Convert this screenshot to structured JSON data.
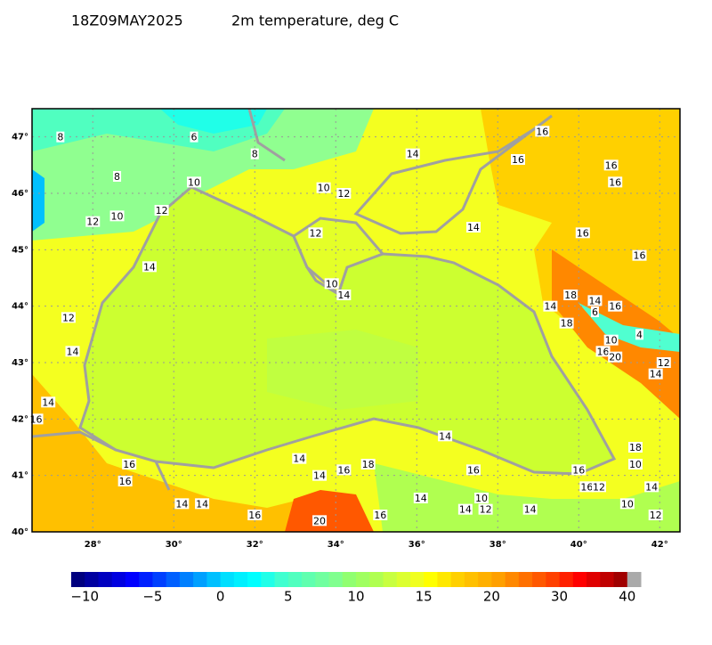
{
  "header": {
    "time": "18Z09MAY2025",
    "title": "2m temperature, deg C"
  },
  "map": {
    "lon_range": [
      26.5,
      42.5
    ],
    "lat_range": [
      40,
      47.5
    ],
    "grid": true,
    "lon_ticks": [
      {
        "value": 28,
        "label": "28°"
      },
      {
        "value": 30,
        "label": "30°"
      },
      {
        "value": 32,
        "label": "32°"
      },
      {
        "value": 34,
        "label": "34°"
      },
      {
        "value": 36,
        "label": "36°"
      },
      {
        "value": 38,
        "label": "38°"
      },
      {
        "value": 40,
        "label": "40°"
      },
      {
        "value": 42,
        "label": "42°"
      }
    ],
    "lat_ticks": [
      {
        "value": 40,
        "label": "40°"
      },
      {
        "value": 41,
        "label": "41°"
      },
      {
        "value": 42,
        "label": "42°"
      },
      {
        "value": 43,
        "label": "43°"
      },
      {
        "value": 44,
        "label": "44°"
      },
      {
        "value": 45,
        "label": "45°"
      },
      {
        "value": 46,
        "label": "46°"
      },
      {
        "value": 47,
        "label": "47°"
      }
    ],
    "contour_labels": [
      {
        "lon": 27.2,
        "lat": 47.0,
        "value": 8
      },
      {
        "lon": 30.5,
        "lat": 47.0,
        "value": 6
      },
      {
        "lon": 32.0,
        "lat": 46.7,
        "value": 8
      },
      {
        "lon": 28.6,
        "lat": 46.3,
        "value": 8
      },
      {
        "lon": 30.5,
        "lat": 46.2,
        "value": 10
      },
      {
        "lon": 33.7,
        "lat": 46.1,
        "value": 10
      },
      {
        "lon": 34.2,
        "lat": 46.0,
        "value": 12
      },
      {
        "lon": 35.9,
        "lat": 46.7,
        "value": 14
      },
      {
        "lon": 39.1,
        "lat": 47.1,
        "value": 16
      },
      {
        "lon": 38.5,
        "lat": 46.6,
        "value": 16
      },
      {
        "lon": 40.8,
        "lat": 46.5,
        "value": 16
      },
      {
        "lon": 40.9,
        "lat": 46.2,
        "value": 16
      },
      {
        "lon": 28.0,
        "lat": 45.5,
        "value": 12
      },
      {
        "lon": 28.6,
        "lat": 45.6,
        "value": 10
      },
      {
        "lon": 29.7,
        "lat": 45.7,
        "value": 12
      },
      {
        "lon": 37.4,
        "lat": 45.4,
        "value": 14
      },
      {
        "lon": 40.1,
        "lat": 45.3,
        "value": 16
      },
      {
        "lon": 41.5,
        "lat": 44.9,
        "value": 16
      },
      {
        "lon": 33.5,
        "lat": 45.3,
        "value": 12
      },
      {
        "lon": 29.4,
        "lat": 44.7,
        "value": 14
      },
      {
        "lon": 33.9,
        "lat": 44.4,
        "value": 10
      },
      {
        "lon": 34.2,
        "lat": 44.2,
        "value": 14
      },
      {
        "lon": 39.8,
        "lat": 44.2,
        "value": 18
      },
      {
        "lon": 40.4,
        "lat": 44.1,
        "value": 14
      },
      {
        "lon": 40.9,
        "lat": 44.0,
        "value": 16
      },
      {
        "lon": 40.4,
        "lat": 43.9,
        "value": 6
      },
      {
        "lon": 39.3,
        "lat": 44.0,
        "value": 14
      },
      {
        "lon": 27.4,
        "lat": 43.8,
        "value": 12
      },
      {
        "lon": 39.7,
        "lat": 43.7,
        "value": 18
      },
      {
        "lon": 40.8,
        "lat": 43.4,
        "value": 10
      },
      {
        "lon": 41.5,
        "lat": 43.5,
        "value": 4
      },
      {
        "lon": 27.5,
        "lat": 43.2,
        "value": 14
      },
      {
        "lon": 40.6,
        "lat": 43.2,
        "value": 16
      },
      {
        "lon": 40.9,
        "lat": 43.1,
        "value": 20
      },
      {
        "lon": 42.1,
        "lat": 43.0,
        "value": 12
      },
      {
        "lon": 41.9,
        "lat": 42.8,
        "value": 14
      },
      {
        "lon": 26.9,
        "lat": 42.3,
        "value": 14
      },
      {
        "lon": 26.6,
        "lat": 42.0,
        "value": 16
      },
      {
        "lon": 36.7,
        "lat": 41.7,
        "value": 14
      },
      {
        "lon": 28.9,
        "lat": 41.2,
        "value": 16
      },
      {
        "lon": 28.8,
        "lat": 40.9,
        "value": 16
      },
      {
        "lon": 33.1,
        "lat": 41.3,
        "value": 14
      },
      {
        "lon": 33.6,
        "lat": 41.0,
        "value": 14
      },
      {
        "lon": 34.2,
        "lat": 41.1,
        "value": 16
      },
      {
        "lon": 34.8,
        "lat": 41.2,
        "value": 18
      },
      {
        "lon": 37.4,
        "lat": 41.1,
        "value": 16
      },
      {
        "lon": 41.4,
        "lat": 41.5,
        "value": 18
      },
      {
        "lon": 41.4,
        "lat": 41.2,
        "value": 10
      },
      {
        "lon": 40.0,
        "lat": 41.1,
        "value": 16
      },
      {
        "lon": 40.2,
        "lat": 40.8,
        "value": 16
      },
      {
        "lon": 40.5,
        "lat": 40.8,
        "value": 12
      },
      {
        "lon": 41.8,
        "lat": 40.8,
        "value": 14
      },
      {
        "lon": 41.2,
        "lat": 40.5,
        "value": 10
      },
      {
        "lon": 41.9,
        "lat": 40.3,
        "value": 12
      },
      {
        "lon": 30.2,
        "lat": 40.5,
        "value": 14
      },
      {
        "lon": 30.7,
        "lat": 40.5,
        "value": 14
      },
      {
        "lon": 32.0,
        "lat": 40.3,
        "value": 16
      },
      {
        "lon": 33.6,
        "lat": 40.2,
        "value": 20
      },
      {
        "lon": 35.1,
        "lat": 40.3,
        "value": 16
      },
      {
        "lon": 36.1,
        "lat": 40.6,
        "value": 14
      },
      {
        "lon": 37.6,
        "lat": 40.6,
        "value": 10
      },
      {
        "lon": 37.2,
        "lat": 40.4,
        "value": 14
      },
      {
        "lon": 37.7,
        "lat": 40.4,
        "value": 12
      },
      {
        "lon": 38.8,
        "lat": 40.4,
        "value": 14
      }
    ]
  },
  "colorbar": {
    "ticks": [
      {
        "value": -10,
        "label": "−10"
      },
      {
        "value": -5,
        "label": "−5"
      },
      0,
      5,
      10,
      15,
      20,
      30,
      40
    ],
    "colors": [
      "#00007f",
      "#0000a0",
      "#0000c0",
      "#0000e0",
      "#0000ff",
      "#0020ff",
      "#0040ff",
      "#0060ff",
      "#0080ff",
      "#00a0ff",
      "#00c0ff",
      "#00dfff",
      "#00f0ff",
      "#00ffff",
      "#20ffe8",
      "#40ffd0",
      "#50ffbf",
      "#60ffaf",
      "#70ff9f",
      "#80ff8f",
      "#90ff70",
      "#a0ff60",
      "#b0ff50",
      "#c8ff40",
      "#dcff30",
      "#f0ff20",
      "#ffff00",
      "#ffe800",
      "#ffd000",
      "#ffc000",
      "#ffb000",
      "#ffa000",
      "#ff8800",
      "#ff7000",
      "#ff5800",
      "#ff4000",
      "#ff2000",
      "#ff0000",
      "#e00000",
      "#c00000",
      "#a00000",
      "#aaaaaa"
    ]
  }
}
